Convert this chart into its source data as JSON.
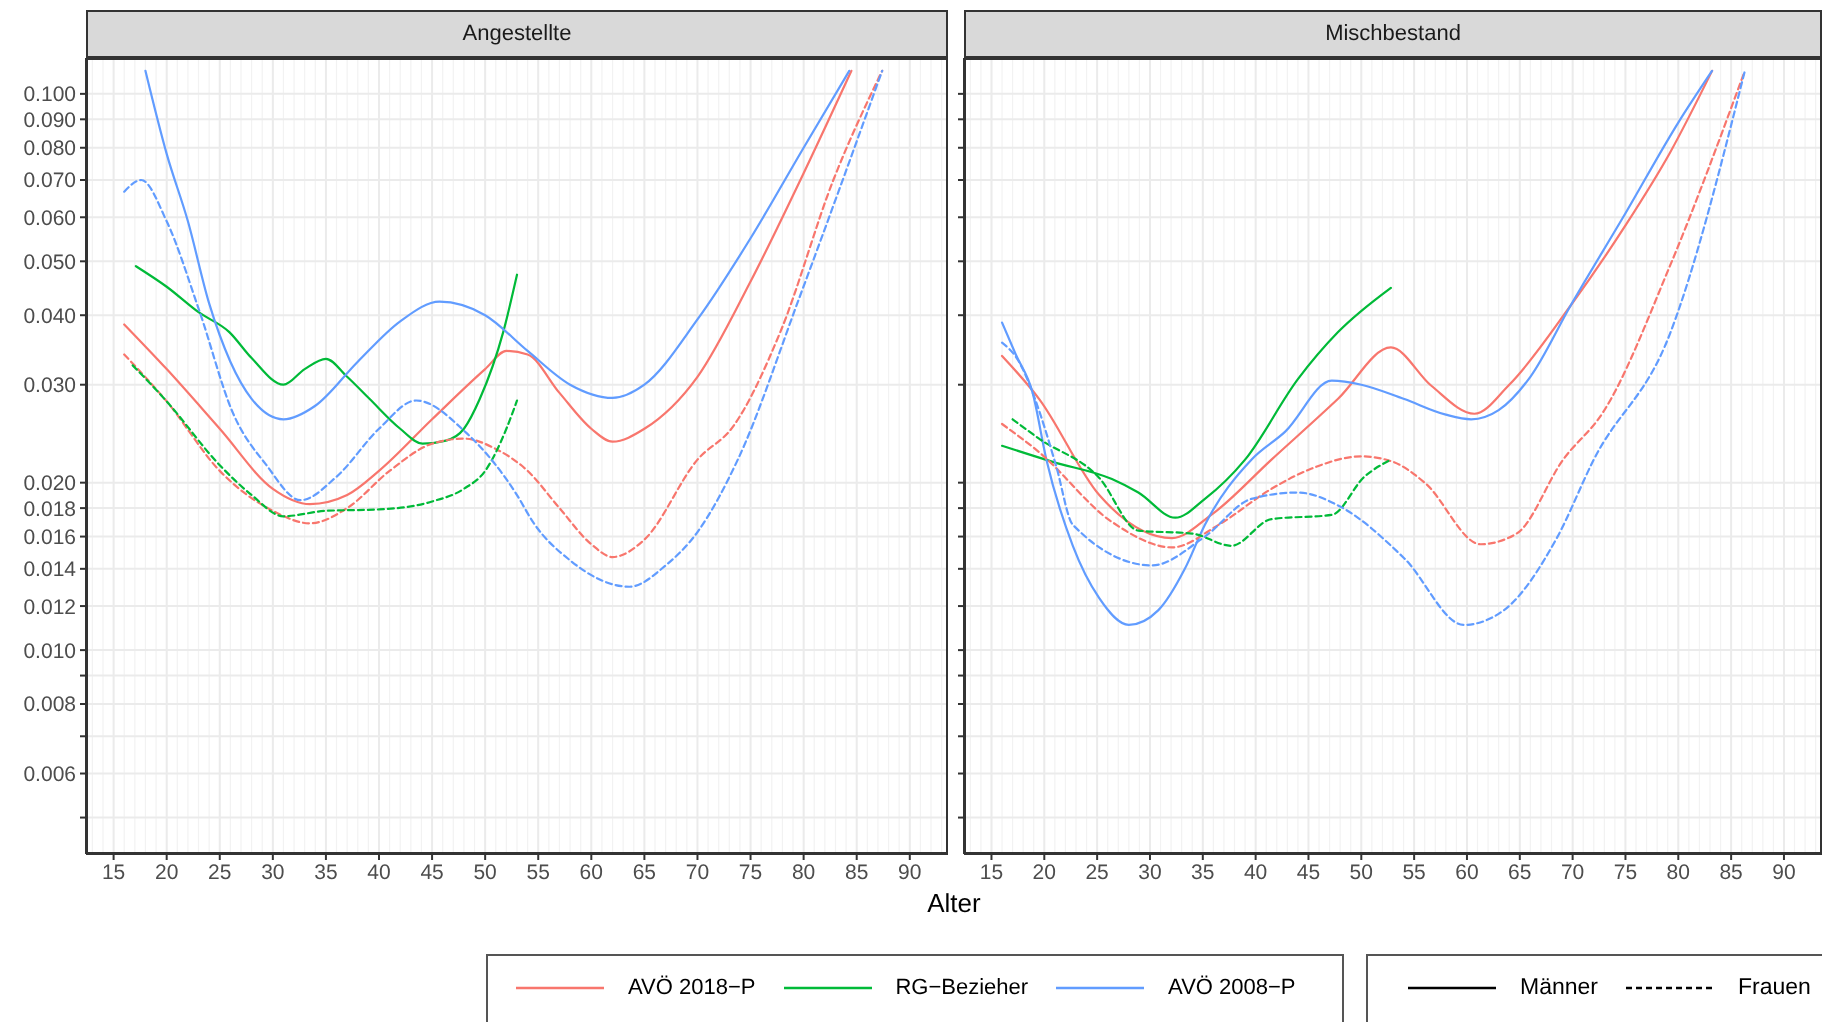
{
  "chart_data": [
    {
      "type": "line",
      "title": "Angestellte",
      "xlabel": "Alter",
      "log": true,
      "grid": true,
      "legend": "bottom",
      "xlim": [
        12.4,
        93.6
      ],
      "ylim": [
        0.0043,
        0.116
      ],
      "xticks": [
        15,
        20,
        25,
        30,
        35,
        40,
        45,
        50,
        55,
        60,
        65,
        70,
        75,
        80,
        85,
        90
      ],
      "yticks": [
        {
          "value": 0.1,
          "label": "0.100"
        },
        {
          "value": 0.09,
          "label": "0.090"
        },
        {
          "value": 0.08,
          "label": "0.080"
        },
        {
          "value": 0.07,
          "label": "0.070"
        },
        {
          "value": 0.06,
          "label": "0.060"
        },
        {
          "value": 0.05,
          "label": "0.050"
        },
        {
          "value": 0.04,
          "label": "0.040"
        },
        {
          "value": 0.03,
          "label": "0.030"
        },
        {
          "value": 0.02,
          "label": "0.020"
        },
        {
          "value": 0.018,
          "label": "0.018"
        },
        {
          "value": 0.016,
          "label": "0.016"
        },
        {
          "value": 0.014,
          "label": "0.014"
        },
        {
          "value": 0.012,
          "label": "0.012"
        },
        {
          "value": 0.01,
          "label": "0.010"
        },
        {
          "value": 0.009,
          "label": null
        },
        {
          "value": 0.008,
          "label": "0.008"
        },
        {
          "value": 0.007,
          "label": null
        },
        {
          "value": 0.006,
          "label": "0.006"
        },
        {
          "value": 0.005,
          "label": null
        }
      ],
      "annotations": [
        "Männer",
        "Frauen"
      ],
      "series": [
        {
          "name": "AVÖ 2018−P",
          "color": "#f8766d",
          "line_style": "solid",
          "x": [
            16,
            20,
            25,
            30,
            33.5,
            37,
            40,
            45,
            50,
            52,
            54,
            57,
            60,
            62,
            65,
            70,
            75,
            80,
            84.5
          ],
          "values": [
            0.0385,
            0.032,
            0.025,
            0.0195,
            0.0183,
            0.019,
            0.021,
            0.026,
            0.032,
            0.0345,
            0.034,
            0.029,
            0.025,
            0.0237,
            0.025,
            0.031,
            0.046,
            0.072,
            0.11
          ]
        },
        {
          "name": "RG−Bezieher",
          "color": "#00ba38",
          "line_style": "solid",
          "x": [
            17.1,
            20,
            23,
            25.9,
            28,
            31,
            33,
            35,
            37,
            39.1,
            42,
            44.1,
            46.3,
            48,
            49.5,
            51.7,
            53
          ],
          "values": [
            0.049,
            0.045,
            0.0405,
            0.0373,
            0.0335,
            0.03,
            0.032,
            0.0334,
            0.031,
            0.0283,
            0.025,
            0.0235,
            0.0238,
            0.025,
            0.0283,
            0.0373,
            0.0473
          ]
        },
        {
          "name": "AVÖ 2008−P",
          "color": "#619cff",
          "line_style": "solid",
          "x": [
            18,
            20,
            22,
            24,
            26,
            28,
            31,
            34,
            38,
            42,
            45.7,
            50,
            54,
            58,
            62,
            65,
            70,
            75,
            80,
            84.3
          ],
          "values": [
            0.11,
            0.078,
            0.059,
            0.042,
            0.033,
            0.0283,
            0.026,
            0.0275,
            0.033,
            0.039,
            0.0423,
            0.04,
            0.0345,
            0.03,
            0.0284,
            0.03,
            0.0393,
            0.055,
            0.08,
            0.11
          ]
        },
        {
          "color": "#f8766d",
          "line_style": "dashed",
          "x": [
            16,
            20,
            25,
            30,
            33.5,
            37,
            41,
            45,
            48,
            51,
            54,
            57,
            60,
            62,
            65,
            70,
            73.4,
            77.8,
            82.8,
            87.4
          ],
          "values": [
            0.034,
            0.028,
            0.021,
            0.0178,
            0.0169,
            0.018,
            0.021,
            0.0235,
            0.024,
            0.023,
            0.021,
            0.018,
            0.0155,
            0.0147,
            0.0158,
            0.022,
            0.0253,
            0.0373,
            0.07,
            0.11
          ]
        },
        {
          "color": "#00ba38",
          "line_style": "dashed",
          "x": [
            16.8,
            20,
            25,
            28,
            31,
            35,
            40,
            45,
            48,
            50,
            52,
            53
          ],
          "values": [
            0.0325,
            0.028,
            0.0215,
            0.019,
            0.0174,
            0.0178,
            0.0179,
            0.0185,
            0.0195,
            0.021,
            0.025,
            0.0281
          ]
        },
        {
          "color": "#619cff",
          "line_style": "dashed",
          "x": [
            16,
            17.6,
            20,
            23.1,
            26.2,
            29.4,
            32.6,
            36,
            40,
            43.5,
            48.2,
            53,
            54.5,
            58,
            63.6,
            67,
            70,
            73.8,
            79.6,
            87.4
          ],
          "values": [
            0.0667,
            0.07,
            0.059,
            0.0406,
            0.0268,
            0.0215,
            0.0186,
            0.0205,
            0.025,
            0.0281,
            0.0246,
            0.019,
            0.017,
            0.0145,
            0.013,
            0.0142,
            0.0163,
            0.022,
            0.043,
            0.11
          ]
        }
      ]
    },
    {
      "type": "line",
      "title": "Mischbestand",
      "log": true,
      "grid": true,
      "legend": "bottom",
      "tick_labels": "x",
      "xlim": [
        12.4,
        93.6
      ],
      "ylim": [
        0.0043,
        0.116
      ],
      "xticks": [
        15,
        20,
        25,
        30,
        35,
        40,
        45,
        50,
        55,
        60,
        65,
        70,
        75,
        80,
        85,
        90
      ],
      "yticks": [
        {
          "value": 0.1,
          "label": null
        },
        {
          "value": 0.09,
          "label": null
        },
        {
          "value": 0.08,
          "label": null
        },
        {
          "value": 0.07,
          "label": null
        },
        {
          "value": 0.06,
          "label": null
        },
        {
          "value": 0.05,
          "label": null
        },
        {
          "value": 0.04,
          "label": null
        },
        {
          "value": 0.03,
          "label": null
        },
        {
          "value": 0.02,
          "label": null
        },
        {
          "value": 0.018,
          "label": null
        },
        {
          "value": 0.016,
          "label": null
        },
        {
          "value": 0.014,
          "label": null
        },
        {
          "value": 0.012,
          "label": null
        },
        {
          "value": 0.01,
          "label": null
        },
        {
          "value": 0.009,
          "label": null
        },
        {
          "value": 0.008,
          "label": null
        },
        {
          "value": 0.007,
          "label": null
        },
        {
          "value": 0.006,
          "label": null
        },
        {
          "value": 0.005,
          "label": null
        }
      ],
      "series": [
        {
          "name": "AVÖ 2018−P",
          "color": "#f8766d",
          "line_style": "solid",
          "x": [
            16,
            19.5,
            25.2,
            32.1,
            35.8,
            41.5,
            47.8,
            52.8,
            56.6,
            60.7,
            64,
            69.8,
            75,
            79.2,
            83.2
          ],
          "values": [
            0.0338,
            0.0283,
            0.019,
            0.0159,
            0.0175,
            0.022,
            0.0283,
            0.035,
            0.0299,
            0.0266,
            0.03,
            0.0416,
            0.058,
            0.0783,
            0.11
          ]
        },
        {
          "name": "RG−Bezieher",
          "color": "#00ba38",
          "line_style": "solid",
          "x": [
            16,
            20.8,
            26.4,
            28.9,
            32.4,
            35.2,
            39,
            44,
            47.8,
            52.8
          ],
          "values": [
            0.0233,
            0.0218,
            0.0203,
            0.0192,
            0.0173,
            0.0187,
            0.022,
            0.0307,
            0.0373,
            0.0448
          ]
        },
        {
          "name": "AVÖ 2008−P",
          "color": "#619cff",
          "line_style": "solid",
          "x": [
            16,
            17.3,
            18.9,
            20.2,
            22.7,
            25.2,
            28,
            30.8,
            33.3,
            35.2,
            39.6,
            42.8,
            47.2,
            50,
            54,
            58,
            60.4,
            63,
            66,
            69.8,
            75,
            80,
            83.2
          ],
          "values": [
            0.0388,
            0.034,
            0.029,
            0.022,
            0.0154,
            0.0124,
            0.0111,
            0.0118,
            0.014,
            0.0168,
            0.022,
            0.0247,
            0.0305,
            0.03,
            0.0283,
            0.0265,
            0.026,
            0.027,
            0.031,
            0.0416,
            0.061,
            0.0888,
            0.11
          ]
        },
        {
          "color": "#f8766d",
          "line_style": "dashed",
          "x": [
            16,
            19.5,
            26.4,
            32.1,
            36.5,
            41.5,
            45.3,
            50,
            53,
            56,
            61.3,
            64.7,
            69.1,
            72.9,
            79.2,
            86.3
          ],
          "values": [
            0.0255,
            0.0227,
            0.017,
            0.0153,
            0.0168,
            0.0195,
            0.0212,
            0.0223,
            0.0218,
            0.02,
            0.0155,
            0.0162,
            0.022,
            0.0268,
            0.049,
            0.11
          ]
        },
        {
          "color": "#00ba38",
          "line_style": "dashed",
          "x": [
            17,
            19.5,
            25.2,
            28.9,
            34,
            37.7,
            41.5,
            47.2,
            50.3,
            52.8
          ],
          "values": [
            0.026,
            0.024,
            0.0204,
            0.0164,
            0.0162,
            0.0154,
            0.0172,
            0.0175,
            0.0205,
            0.022
          ]
        },
        {
          "color": "#619cff",
          "line_style": "dashed",
          "x": [
            16,
            17.6,
            19.2,
            21.1,
            22.7,
            30.2,
            35.2,
            39.6,
            44,
            47.8,
            54.1,
            59.7,
            63.5,
            68.5,
            72,
            79.2,
            86.3
          ],
          "values": [
            0.0357,
            0.033,
            0.028,
            0.0215,
            0.0168,
            0.0142,
            0.016,
            0.0187,
            0.0192,
            0.0182,
            0.0146,
            0.0111,
            0.0118,
            0.0159,
            0.022,
            0.037,
            0.11
          ]
        }
      ]
    }
  ]
}
